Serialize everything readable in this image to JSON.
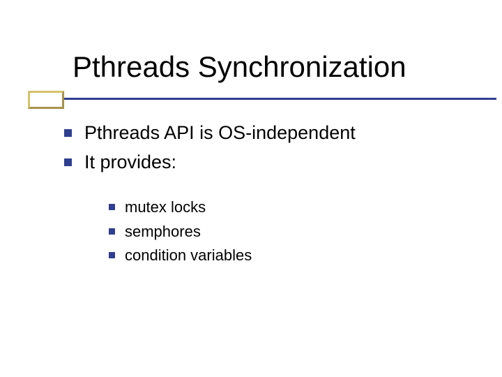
{
  "colors": {
    "title": "#000000",
    "body": "#000000",
    "bullet": "#2f3f8f",
    "underline": "#2f3f8f",
    "deco_top": "#d6c36a",
    "deco_left": "#d6c36a",
    "deco_right": "#a8924a",
    "deco_bottom": "#a8924a",
    "deco_fill": "#ffffff"
  },
  "title": "Pthreads Synchronization",
  "level1": [
    "Pthreads API is OS-independent",
    "It provides:"
  ],
  "level2": [
    "mutex locks",
    "semphores",
    "condition variables"
  ]
}
